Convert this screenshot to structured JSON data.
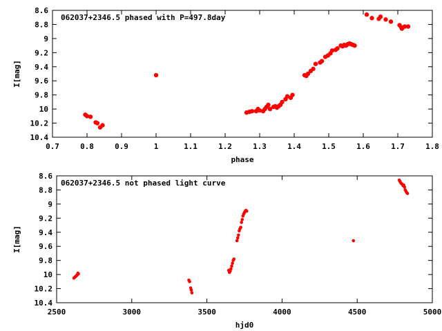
{
  "chart_data": [
    {
      "type": "scatter",
      "title": "062037+2346.5 phased with P=497.8day",
      "xlabel": "phase",
      "ylabel": "I[mag]",
      "xlim": [
        0.7,
        1.8
      ],
      "ylim": [
        10.4,
        8.6
      ],
      "y_inverted": true,
      "grid": false,
      "x_ticks": [
        "0.7",
        "0.8",
        "0.9",
        "1",
        "1.1",
        "1.2",
        "1.3",
        "1.4",
        "1.5",
        "1.6",
        "1.7",
        "1.8"
      ],
      "y_ticks": [
        "8.6",
        "8.8",
        "9",
        "9.2",
        "9.4",
        "9.6",
        "9.8",
        "10",
        "10.2",
        "10.4"
      ],
      "marker_color": "#ff0000",
      "points": [
        [
          0.795,
          10.08
        ],
        [
          0.8,
          10.1
        ],
        [
          0.81,
          10.11
        ],
        [
          0.825,
          10.19
        ],
        [
          0.83,
          10.2
        ],
        [
          0.838,
          10.26
        ],
        [
          0.845,
          10.23
        ],
        [
          1.0,
          9.52
        ],
        [
          1.262,
          10.05
        ],
        [
          1.27,
          10.04
        ],
        [
          1.278,
          10.03
        ],
        [
          1.29,
          10.03
        ],
        [
          1.295,
          10.0
        ],
        [
          1.3,
          10.02
        ],
        [
          1.31,
          10.03
        ],
        [
          1.315,
          10.0
        ],
        [
          1.32,
          9.97
        ],
        [
          1.325,
          9.94
        ],
        [
          1.33,
          10.0
        ],
        [
          1.34,
          9.97
        ],
        [
          1.345,
          9.96
        ],
        [
          1.35,
          9.98
        ],
        [
          1.355,
          9.96
        ],
        [
          1.36,
          9.94
        ],
        [
          1.365,
          9.9
        ],
        [
          1.375,
          9.86
        ],
        [
          1.38,
          9.82
        ],
        [
          1.39,
          9.84
        ],
        [
          1.395,
          9.8
        ],
        [
          1.43,
          9.52
        ],
        [
          1.435,
          9.53
        ],
        [
          1.44,
          9.5
        ],
        [
          1.448,
          9.46
        ],
        [
          1.455,
          9.43
        ],
        [
          1.462,
          9.36
        ],
        [
          1.475,
          9.34
        ],
        [
          1.48,
          9.32
        ],
        [
          1.49,
          9.26
        ],
        [
          1.498,
          9.24
        ],
        [
          1.505,
          9.21
        ],
        [
          1.51,
          9.17
        ],
        [
          1.52,
          9.16
        ],
        [
          1.525,
          9.14
        ],
        [
          1.535,
          9.1
        ],
        [
          1.54,
          9.11
        ],
        [
          1.545,
          9.09
        ],
        [
          1.55,
          9.1
        ],
        [
          1.555,
          9.08
        ],
        [
          1.56,
          9.07
        ],
        [
          1.565,
          9.08
        ],
        [
          1.57,
          9.09
        ],
        [
          1.575,
          9.1
        ],
        [
          1.61,
          8.66
        ],
        [
          1.625,
          8.71
        ],
        [
          1.645,
          8.72
        ],
        [
          1.65,
          8.69
        ],
        [
          1.665,
          8.73
        ],
        [
          1.68,
          8.76
        ],
        [
          1.705,
          8.81
        ],
        [
          1.71,
          8.84
        ],
        [
          1.712,
          8.86
        ],
        [
          1.72,
          8.83
        ],
        [
          1.73,
          8.83
        ]
      ]
    },
    {
      "type": "scatter",
      "title": "062037+2346.5 not phased light curve",
      "xlabel": "hjd0",
      "ylabel": "I[mag]",
      "xlim": [
        2500,
        5000
      ],
      "ylim": [
        10.4,
        8.6
      ],
      "y_inverted": true,
      "grid": false,
      "x_ticks": [
        "2500",
        "3000",
        "3500",
        "4000",
        "4500",
        "5000"
      ],
      "y_ticks": [
        "8.6",
        "8.8",
        "9",
        "9.2",
        "9.4",
        "9.6",
        "9.8",
        "10",
        "10.2",
        "10.4"
      ],
      "marker_color": "#ff0000",
      "points": [
        [
          2615,
          10.05
        ],
        [
          2620,
          10.04
        ],
        [
          2625,
          10.03
        ],
        [
          2630,
          10.02
        ],
        [
          2635,
          10.01
        ],
        [
          2638,
          10.0
        ],
        [
          2642,
          9.98
        ],
        [
          2645,
          9.99
        ],
        [
          3380,
          10.08
        ],
        [
          3385,
          10.1
        ],
        [
          3392,
          10.19
        ],
        [
          3396,
          10.22
        ],
        [
          3400,
          10.26
        ],
        [
          3645,
          9.94
        ],
        [
          3650,
          9.97
        ],
        [
          3655,
          9.95
        ],
        [
          3660,
          9.92
        ],
        [
          3665,
          9.88
        ],
        [
          3670,
          9.84
        ],
        [
          3675,
          9.8
        ],
        [
          3680,
          9.78
        ],
        [
          3700,
          9.52
        ],
        [
          3705,
          9.48
        ],
        [
          3710,
          9.44
        ],
        [
          3715,
          9.38
        ],
        [
          3720,
          9.35
        ],
        [
          3725,
          9.33
        ],
        [
          3730,
          9.26
        ],
        [
          3735,
          9.22
        ],
        [
          3740,
          9.17
        ],
        [
          3745,
          9.14
        ],
        [
          3750,
          9.12
        ],
        [
          3755,
          9.1
        ],
        [
          3760,
          9.09
        ],
        [
          3765,
          9.1
        ],
        [
          4475,
          9.52
        ],
        [
          4780,
          8.66
        ],
        [
          4785,
          8.68
        ],
        [
          4790,
          8.7
        ],
        [
          4795,
          8.71
        ],
        [
          4800,
          8.72
        ],
        [
          4805,
          8.74
        ],
        [
          4810,
          8.73
        ],
        [
          4815,
          8.76
        ],
        [
          4820,
          8.8
        ],
        [
          4825,
          8.82
        ],
        [
          4830,
          8.84
        ],
        [
          4835,
          8.85
        ]
      ]
    }
  ]
}
